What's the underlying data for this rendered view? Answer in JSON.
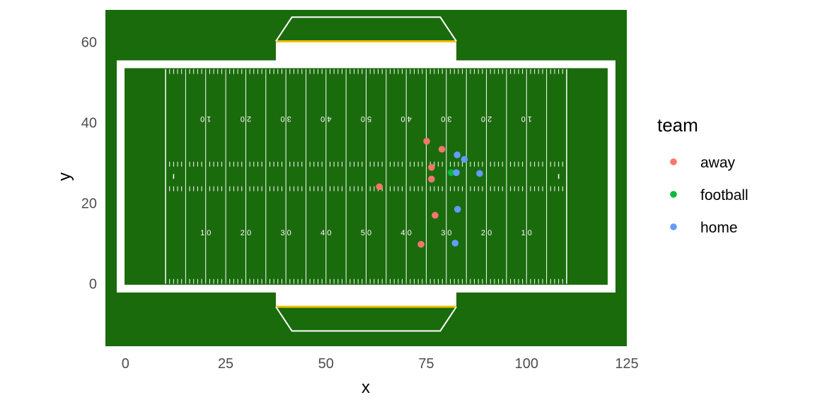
{
  "chart_data": {
    "type": "scatter",
    "title": "",
    "xlabel": "x",
    "ylabel": "y",
    "xlim": [
      -5,
      125
    ],
    "ylim": [
      -15.5,
      68
    ],
    "x_ticks": [
      0,
      25,
      50,
      75,
      100,
      125
    ],
    "y_ticks": [
      0,
      20,
      40,
      60
    ],
    "x_tick_labels": [
      "0",
      "25",
      "50",
      "75",
      "100",
      "125"
    ],
    "y_tick_labels": [
      "0",
      "20",
      "40",
      "60"
    ],
    "grid": false,
    "legend": {
      "title": "team",
      "position": "right"
    },
    "field": {
      "background_color": "#1a6b0c",
      "line_color": "#ffffff",
      "goalpost_color": "#f0c000",
      "length": 120,
      "width": 53.3,
      "endzone_depth": 10,
      "yard_numbers_top_flipped": [
        "1 0",
        "2 0",
        "3 0",
        "4 0",
        "5 0",
        "4 0",
        "3 0",
        "2 0",
        "1 0"
      ],
      "yard_numbers_bottom": [
        "1 0",
        "2 0",
        "3 0",
        "4 0",
        "5 0",
        "4 0",
        "3 0",
        "2 0",
        "1 0"
      ]
    },
    "series": [
      {
        "name": "away",
        "color": "#f8766d",
        "points": [
          [
            75.1,
            35.4
          ],
          [
            78.9,
            33.4
          ],
          [
            76.3,
            28.9
          ],
          [
            76.3,
            26.0
          ],
          [
            63.3,
            24.1
          ],
          [
            77.2,
            17.0
          ],
          [
            73.7,
            9.8
          ]
        ]
      },
      {
        "name": "football",
        "color": "#00ba38",
        "points": [
          [
            81.2,
            27.6
          ]
        ]
      },
      {
        "name": "home",
        "color": "#619cff",
        "points": [
          [
            82.7,
            32.0
          ],
          [
            84.5,
            30.9
          ],
          [
            82.5,
            27.6
          ],
          [
            88.3,
            27.4
          ],
          [
            82.8,
            18.5
          ],
          [
            82.2,
            10.1
          ]
        ]
      }
    ]
  }
}
